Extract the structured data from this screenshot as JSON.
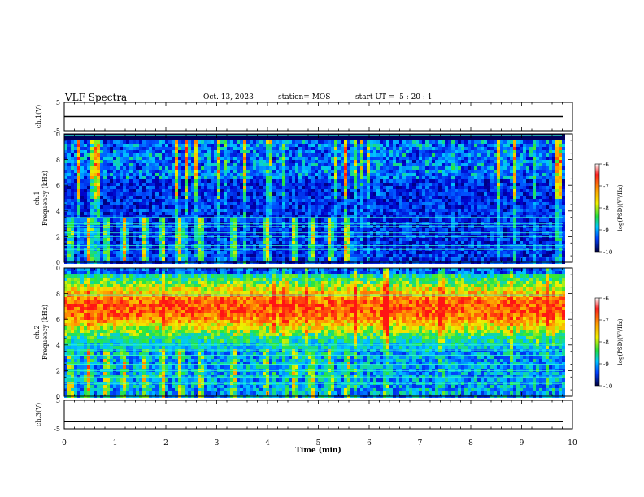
{
  "header": {
    "title": "VLF Spectra",
    "date": "Oct. 13, 2023",
    "station": "station= MOS",
    "start": "start UT =  5 : 20 : 1"
  },
  "colorbar": {
    "label": "log(PSD)(V²/Hz)",
    "ticks": [
      "-6",
      "-7",
      "-8",
      "-9",
      "-10"
    ]
  },
  "chart_data": [
    {
      "type": "line",
      "title": "",
      "ylabel": "ch.1(V)",
      "ylim": [
        -5,
        5
      ],
      "yticks": [
        "5",
        "-5"
      ],
      "series": [
        {
          "x": [
            0,
            9.82
          ],
          "values": [
            0,
            0
          ]
        }
      ]
    },
    {
      "type": "heatmap",
      "ylabel": "ch.1 Frequency (kHz)",
      "ylim": [
        0,
        10
      ],
      "yticks": [
        "0",
        "2",
        "4",
        "6",
        "8",
        "10"
      ],
      "xlim": [
        0,
        10
      ],
      "color_scale": {
        "min": -10,
        "max": -6,
        "label": "log(PSD)(V²/Hz)"
      },
      "x_end_min": 9.82,
      "bursts_min": [
        0.1,
        0.45,
        0.8,
        1.15,
        1.55,
        1.9,
        2.25,
        2.65,
        3.3,
        3.95,
        4.5,
        4.85,
        5.2,
        5.55
      ],
      "tone_lines_khz": [
        0.4,
        1.0,
        1.3,
        2.0,
        2.3,
        2.8,
        3.0,
        3.5,
        9.9
      ]
    },
    {
      "type": "heatmap",
      "ylabel": "ch.2 Frequency (kHz)",
      "ylim": [
        0,
        10
      ],
      "yticks": [
        "0",
        "2",
        "4",
        "6",
        "8",
        "10"
      ],
      "xlim": [
        0,
        10
      ],
      "color_scale": {
        "min": -10,
        "max": -6,
        "label": "log(PSD)(V²/Hz)"
      },
      "x_end_min": 9.82,
      "bursts_min": [
        0.1,
        0.45,
        0.8,
        1.15,
        1.55,
        1.9,
        2.25,
        2.65,
        3.3,
        3.95,
        4.5,
        4.85,
        5.2,
        5.55
      ],
      "tone_lines_khz": [
        1.0,
        1.5,
        2.0,
        2.5,
        3.2,
        3.6,
        4.0,
        7.9
      ]
    },
    {
      "type": "line",
      "ylabel": "ch.3(V)",
      "ylim": [
        -5,
        5
      ],
      "yticks": [
        "5",
        "-5"
      ],
      "xlabel": "Time  (min)",
      "xlim": [
        0,
        10
      ],
      "xticks": [
        "0",
        "1",
        "2",
        "3",
        "4",
        "5",
        "6",
        "7",
        "8",
        "9",
        "10"
      ],
      "series": [
        {
          "x": [
            0,
            9.82
          ],
          "values": [
            -2.5,
            -2.5
          ]
        }
      ]
    }
  ]
}
